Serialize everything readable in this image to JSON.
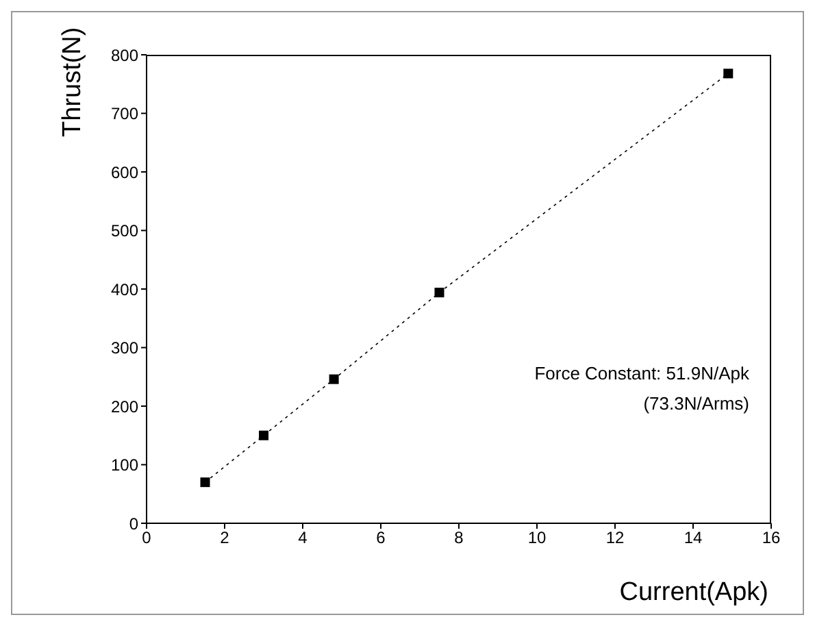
{
  "chart_data": {
    "type": "line",
    "xlabel": "Current(Apk)",
    "ylabel": "Thrust(N)",
    "x": [
      1.5,
      3,
      4.8,
      7.5,
      14.9
    ],
    "series": [
      {
        "color": "#000000",
        "values": [
          70,
          150,
          246,
          394,
          768
        ]
      }
    ],
    "xlim": [
      0,
      16
    ],
    "xticks": [
      0,
      2,
      4,
      6,
      8,
      10,
      12,
      14,
      16
    ],
    "ylim": [
      0,
      800
    ],
    "yticks": [
      0,
      100,
      200,
      300,
      400,
      500,
      600,
      700,
      800
    ],
    "marker": "square",
    "line_style": "dotted",
    "grid": false,
    "legend": false,
    "annotations": [
      "Force Constant: 51.9N/Apk",
      "(73.3N/Arms)"
    ]
  }
}
